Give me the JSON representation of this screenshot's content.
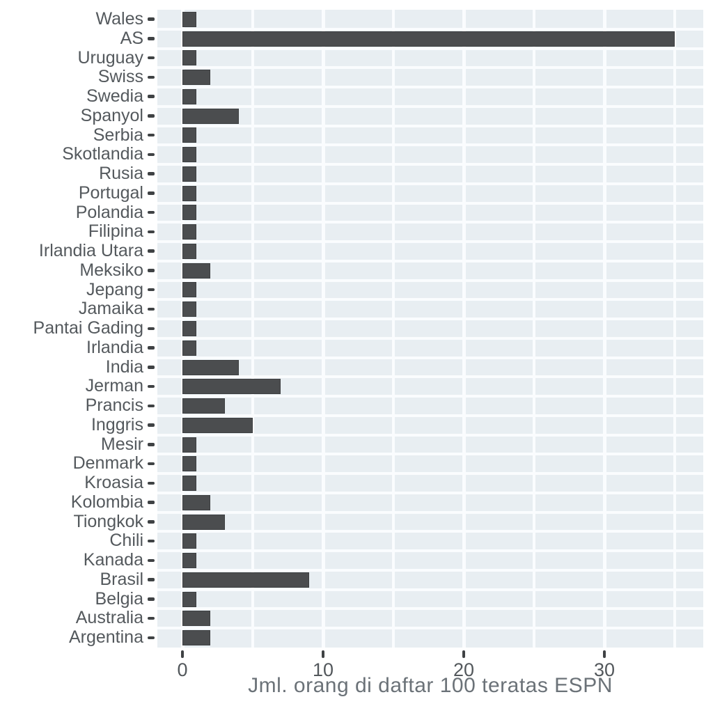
{
  "chart_data": {
    "type": "bar",
    "orientation": "horizontal",
    "title": "",
    "xlabel": "Jml. orang di daftar 100 teratas ESPN",
    "ylabel": "",
    "categories": [
      "Wales",
      "AS",
      "Uruguay",
      "Swiss",
      "Swedia",
      "Spanyol",
      "Serbia",
      "Skotlandia",
      "Rusia",
      "Portugal",
      "Polandia",
      "Filipina",
      "Irlandia Utara",
      "Meksiko",
      "Jepang",
      "Jamaika",
      "Pantai Gading",
      "Irlandia",
      "India",
      "Jerman",
      "Prancis",
      "Inggris",
      "Mesir",
      "Denmark",
      "Kroasia",
      "Kolombia",
      "Tiongkok",
      "Chili",
      "Kanada",
      "Brasil",
      "Belgia",
      "Australia",
      "Argentina"
    ],
    "values": [
      1,
      35,
      1,
      2,
      1,
      4,
      1,
      1,
      1,
      1,
      1,
      1,
      1,
      2,
      1,
      1,
      1,
      1,
      4,
      7,
      3,
      5,
      1,
      1,
      1,
      2,
      3,
      1,
      1,
      9,
      1,
      2,
      2
    ],
    "x_ticks": [
      0,
      10,
      20,
      30
    ],
    "x_minor_ticks": [
      5,
      15,
      25,
      35
    ],
    "xlim": [
      0,
      37
    ],
    "grid": "on",
    "legend": "none",
    "colors": {
      "bar": "#4b4d4f",
      "bar_border": "#3e4042",
      "panel_background": "#e8eef2",
      "gridline": "#fafcfe",
      "page_background": "#ffffff",
      "axis_tick_text": "#53585c",
      "category_text": "#54595d",
      "axis_title_text": "#6b7278",
      "tick_mark": "#3f4244"
    }
  }
}
